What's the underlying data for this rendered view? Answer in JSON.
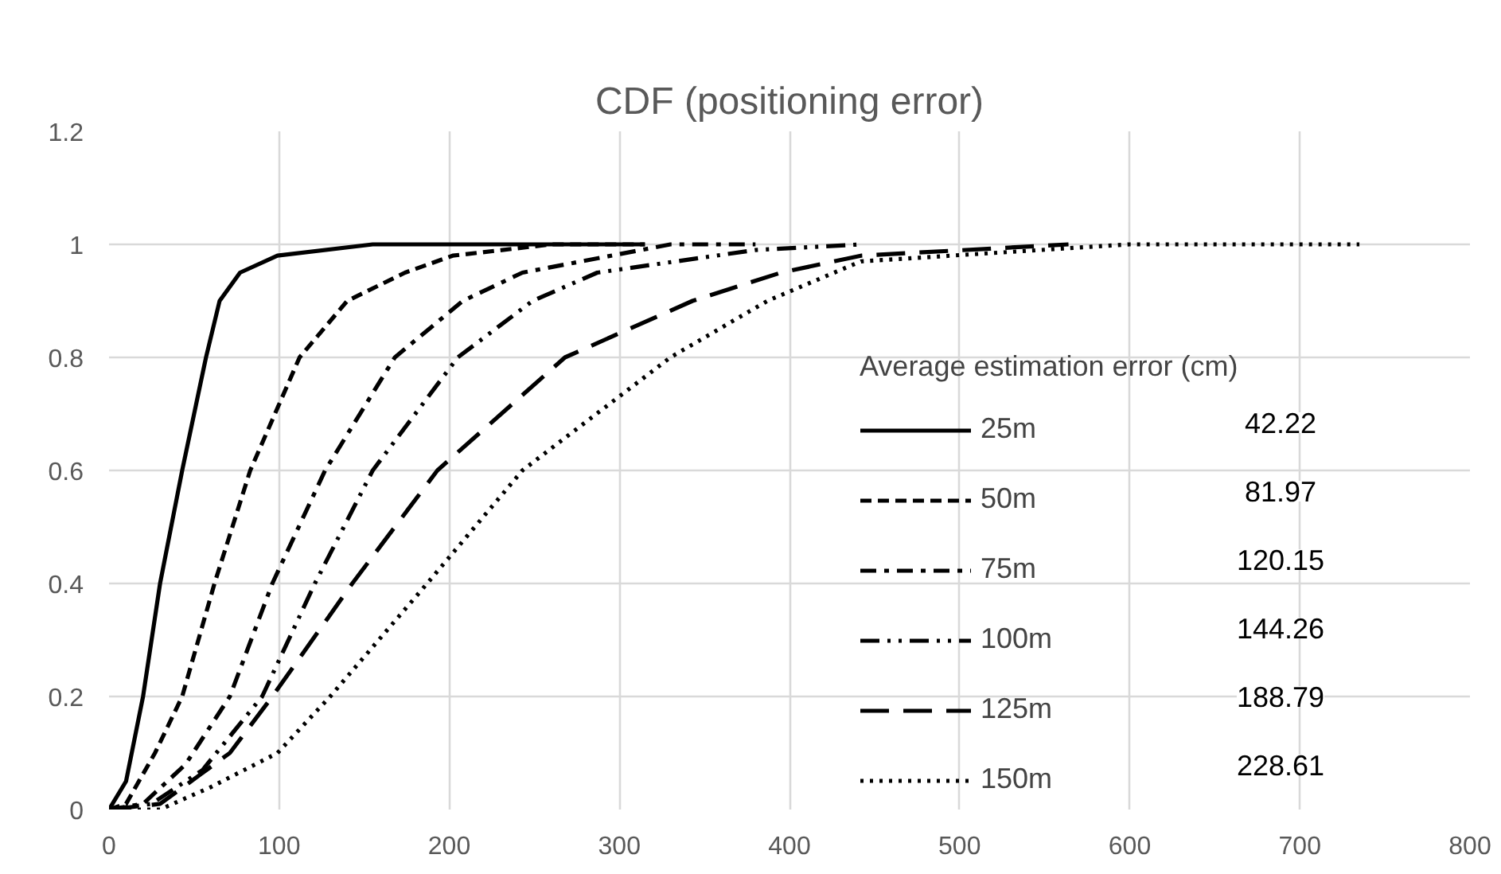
{
  "chart_data": {
    "type": "line",
    "title": "CDF (positioning error)",
    "legend_title": "Average estimation error (cm)",
    "xlim": [
      0,
      800
    ],
    "xticks": [
      0,
      100,
      200,
      300,
      400,
      500,
      600,
      700,
      800
    ],
    "ylim": [
      0,
      1.2
    ],
    "yticks": [
      0,
      0.2,
      0.4,
      0.6,
      0.8,
      1,
      1.2
    ],
    "grid": true,
    "legend": "bottom right",
    "marker": "none",
    "series": [
      {
        "name": "25m",
        "color": "#000000",
        "line_style": "solid",
        "x": [
          0,
          10,
          20,
          30,
          43,
          57,
          65,
          77,
          99,
          155,
          315
        ],
        "values": [
          0,
          0.05,
          0.2,
          0.4,
          0.6,
          0.8,
          0.9,
          0.95,
          0.98,
          1.0,
          1.0
        ]
      },
      {
        "name": "50m",
        "color": "#000000",
        "line_style": "dashed",
        "x": [
          0,
          10,
          27,
          43,
          62,
          83,
          112,
          140,
          174,
          202,
          260,
          315
        ],
        "values": [
          0,
          0.01,
          0.1,
          0.2,
          0.4,
          0.6,
          0.8,
          0.9,
          0.95,
          0.98,
          1.0,
          1.0
        ]
      },
      {
        "name": "75m",
        "color": "#000000",
        "line_style": "dashdot",
        "x": [
          0,
          20,
          45,
          71,
          96,
          127,
          168,
          208,
          243,
          330,
          380
        ],
        "values": [
          0,
          0.01,
          0.08,
          0.2,
          0.4,
          0.6,
          0.8,
          0.9,
          0.95,
          1.0,
          1.0
        ]
      },
      {
        "name": "100m",
        "color": "#000000",
        "line_style": "dashdotdot",
        "x": [
          0,
          25,
          55,
          90,
          121,
          155,
          205,
          249,
          287,
          380,
          442
        ],
        "values": [
          0,
          0.01,
          0.07,
          0.2,
          0.4,
          0.6,
          0.8,
          0.9,
          0.95,
          0.99,
          1.0
        ]
      },
      {
        "name": "125m",
        "color": "#000000",
        "line_style": "longdash",
        "x": [
          0,
          30,
          71,
          96,
          143,
          193,
          268,
          343,
          395,
          442,
          564
        ],
        "values": [
          0,
          0.01,
          0.1,
          0.2,
          0.4,
          0.6,
          0.8,
          0.9,
          0.95,
          0.98,
          1.0
        ]
      },
      {
        "name": "150m",
        "color": "#000000",
        "line_style": "dotted",
        "x": [
          0,
          30,
          60,
          99,
          130,
          187,
          243,
          330,
          387,
          442,
          600,
          735
        ],
        "values": [
          0,
          0.0,
          0.04,
          0.1,
          0.2,
          0.4,
          0.6,
          0.8,
          0.9,
          0.97,
          1.0,
          1.0
        ]
      }
    ],
    "annotations": [
      "42.22",
      "81.97",
      "120.15",
      "144.26",
      "188.79",
      "228.61"
    ]
  }
}
